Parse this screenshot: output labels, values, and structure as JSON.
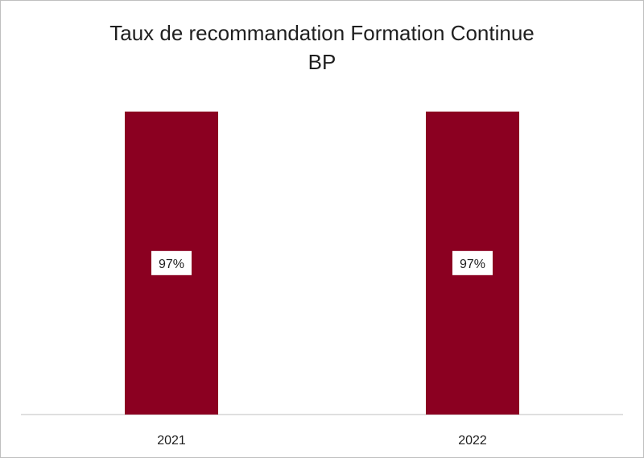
{
  "chart_data": {
    "type": "bar",
    "title_lines": [
      "Taux de recommandation Formation Continue",
      "BP"
    ],
    "categories": [
      "2021",
      "2022"
    ],
    "values": [
      97,
      97
    ],
    "data_labels": [
      "97%",
      "97%"
    ],
    "ylim": [
      0,
      100
    ],
    "grid": false,
    "legend": "none",
    "bar_color": "#8b0021",
    "axis_color": "#bfbfbf"
  }
}
